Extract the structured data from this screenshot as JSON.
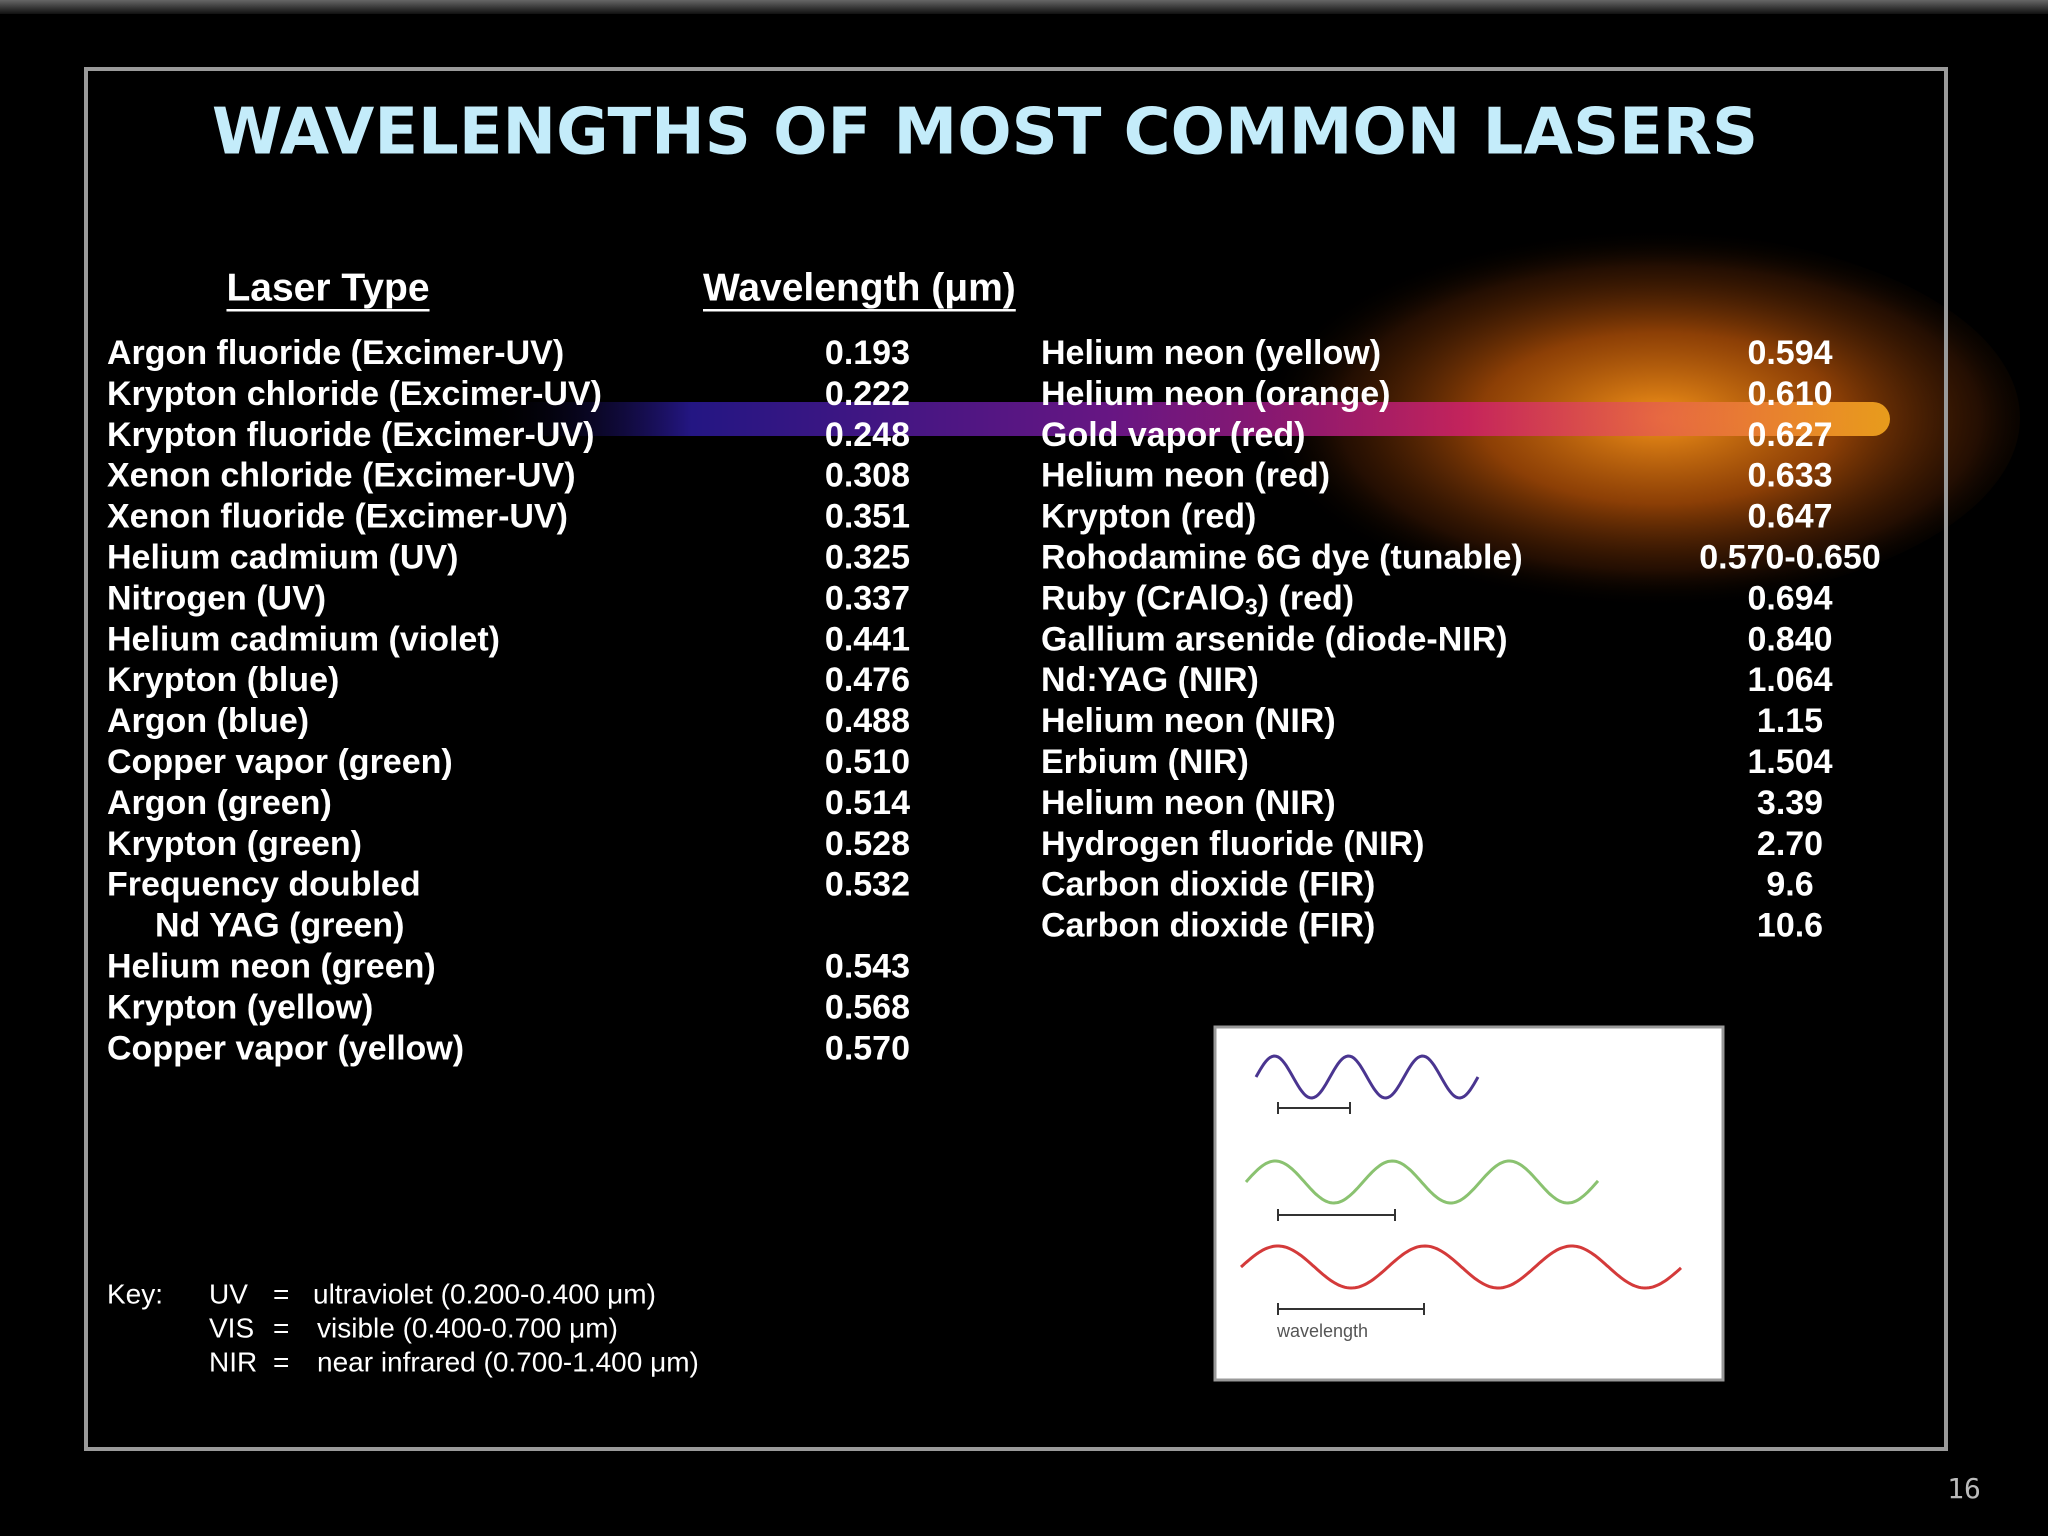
{
  "title": "WAVELENGTHS OF MOST COMMON LASERS",
  "table": {
    "headers": [
      "Laser Type",
      "Wavelength (μm)"
    ],
    "left_rows": [
      {
        "name": "Argon fluoride (Excimer-UV)",
        "value": "0.193"
      },
      {
        "name": "Krypton chloride (Excimer-UV)",
        "value": "0.222"
      },
      {
        "name": "Krypton fluoride (Excimer-UV)",
        "value": "0.248"
      },
      {
        "name": "Xenon chloride (Excimer-UV)",
        "value": "0.308"
      },
      {
        "name": "Xenon fluoride (Excimer-UV)",
        "value": "0.351"
      },
      {
        "name": "Helium cadmium (UV)",
        "value": "0.325"
      },
      {
        "name": "Nitrogen (UV)",
        "value": "0.337"
      },
      {
        "name": "Helium cadmium (violet)",
        "value": "0.441"
      },
      {
        "name": "Krypton (blue)",
        "value": "0.476"
      },
      {
        "name": "Argon (blue)",
        "value": "0.488"
      },
      {
        "name": "Copper vapor (green)",
        "value": "0.510"
      },
      {
        "name": "Argon (green)",
        "value": "0.514"
      },
      {
        "name": "Krypton (green)",
        "value": "0.528"
      },
      {
        "name": "Frequency doubled",
        "value": "0.532"
      },
      {
        "name": "Nd YAG (green)"
      },
      {
        "name": "Helium neon (green)",
        "value": "0.543"
      },
      {
        "name": "Krypton (yellow)",
        "value": "0.568"
      },
      {
        "name": "Copper vapor (yellow)",
        "value": "0.570"
      }
    ],
    "right_rows": [
      {
        "name": "Helium neon (yellow)",
        "value": "0.594"
      },
      {
        "name": "Helium neon (orange)",
        "value": "0.610"
      },
      {
        "name": "Gold vapor (red)",
        "value": "0.627"
      },
      {
        "name": "Helium neon (red)",
        "value": "0.633"
      },
      {
        "name": "Krypton (red)",
        "value": "0.647"
      },
      {
        "name": "Rohodamine 6G dye (tunable)",
        "value": "0.570-0.650"
      },
      {
        "name": [
          "Ruby (CrAlO",
          "3",
          ") (red)"
        ],
        "value": "0.694"
      },
      {
        "name": "Gallium arsenide (diode-NIR)",
        "value": "0.840"
      },
      {
        "name": "Nd:YAG (NIR)",
        "value": "1.064"
      },
      {
        "name": "Helium neon (NIR)",
        "value": "1.15"
      },
      {
        "name": "Erbium (NIR)",
        "value": "1.504"
      },
      {
        "name": "Helium neon (NIR)",
        "value": "3.39"
      },
      {
        "name": "Hydrogen fluoride (NIR)",
        "value": "2.70"
      },
      {
        "name": "Carbon dioxide (FIR)",
        "value": "9.6"
      },
      {
        "name": "Carbon dioxide (FIR)",
        "value": "10.6"
      }
    ]
  },
  "key": {
    "label": "Key:",
    "rows": [
      {
        "abbr": "UV",
        "sign": "=",
        "text": "ultraviolet (0.200-0.400 μm)"
      },
      {
        "abbr": "VIS",
        "sign": "=",
        "text": "visible (0.400-0.700 μm)"
      },
      {
        "abbr": "NIR",
        "sign": "=",
        "text": "near infrared (0.700-1.400 μm)"
      }
    ]
  },
  "figure": {
    "label": "wavelength"
  },
  "page_number": "16"
}
